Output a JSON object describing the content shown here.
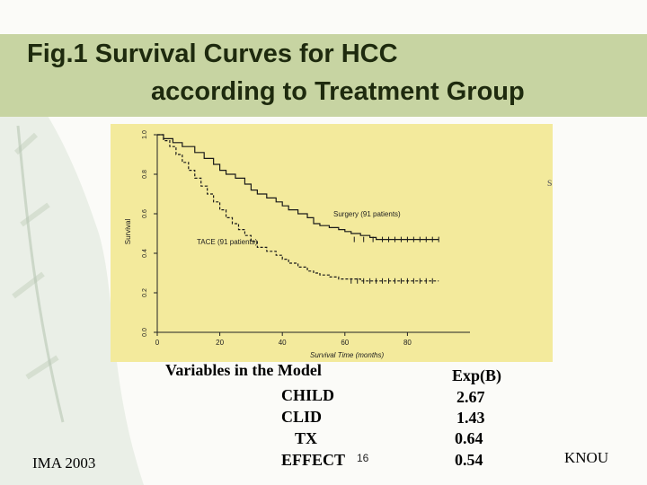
{
  "slide": {
    "title_line1": "Fig.1 Survival Curves for HCC",
    "title_line2": "according to Treatment Group",
    "footer_left": "IMA 2003",
    "footer_right": "KNOU",
    "page_number": "16",
    "stray_mark": "s"
  },
  "table": {
    "header_variables": "Variables in the Model",
    "header_exp": "Exp(B)",
    "rows": [
      {
        "variable": "CHILD",
        "value": "2.67"
      },
      {
        "variable": "CLID",
        "value": "1.43"
      },
      {
        "variable": "TX",
        "value": "0.64"
      },
      {
        "variable": "EFFECT",
        "value": "0.54"
      }
    ]
  },
  "chart_data": {
    "type": "line",
    "title": "",
    "xlabel": "Survival Time (months)",
    "ylabel": "Survival",
    "xlim": [
      0,
      100
    ],
    "ylim": [
      0,
      1
    ],
    "xticks": [
      "0",
      "20",
      "40",
      "60",
      "80"
    ],
    "yticks": [
      "0.0",
      "0.2",
      "0.4",
      "0.6",
      "0.8",
      "1.0"
    ],
    "background": "#f3ea9c",
    "series": [
      {
        "name": "Surgery (91 patients)",
        "style": "solid",
        "x": [
          0,
          2,
          5,
          8,
          12,
          15,
          18,
          20,
          22,
          25,
          28,
          30,
          32,
          35,
          38,
          40,
          42,
          45,
          48,
          50,
          52,
          55,
          58,
          60,
          62,
          65,
          68,
          70,
          75,
          80,
          85,
          90
        ],
        "y": [
          1.0,
          0.98,
          0.96,
          0.94,
          0.91,
          0.88,
          0.85,
          0.82,
          0.8,
          0.78,
          0.75,
          0.72,
          0.7,
          0.68,
          0.66,
          0.64,
          0.62,
          0.6,
          0.58,
          0.55,
          0.54,
          0.53,
          0.52,
          0.51,
          0.5,
          0.49,
          0.48,
          0.47,
          0.47,
          0.47,
          0.47,
          0.47
        ],
        "censor_x": [
          63,
          66,
          69,
          72,
          74,
          76,
          78,
          80,
          82,
          84,
          86,
          88,
          90
        ]
      },
      {
        "name": "TACE (91 patients)",
        "style": "dashed",
        "x": [
          0,
          2,
          4,
          6,
          8,
          10,
          12,
          14,
          16,
          18,
          20,
          22,
          24,
          26,
          28,
          30,
          32,
          35,
          38,
          40,
          42,
          45,
          48,
          50,
          52,
          55,
          58,
          60,
          65,
          70,
          75,
          80,
          85,
          90
        ],
        "y": [
          1.0,
          0.97,
          0.94,
          0.9,
          0.86,
          0.82,
          0.78,
          0.74,
          0.7,
          0.66,
          0.62,
          0.58,
          0.55,
          0.52,
          0.49,
          0.46,
          0.43,
          0.41,
          0.39,
          0.37,
          0.35,
          0.33,
          0.31,
          0.3,
          0.29,
          0.28,
          0.27,
          0.27,
          0.26,
          0.26,
          0.26,
          0.26,
          0.26,
          0.26
        ],
        "censor_x": [
          62,
          64,
          66,
          68,
          70,
          72,
          74,
          76,
          78,
          80,
          82,
          84,
          86,
          88
        ]
      }
    ]
  }
}
